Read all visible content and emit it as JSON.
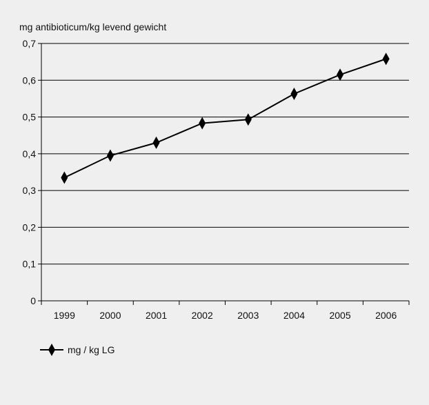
{
  "chart_data": {
    "type": "line",
    "ylabel": "mg antibioticum/kg levend gewicht",
    "categories": [
      "1999",
      "2000",
      "2001",
      "2002",
      "2003",
      "2004",
      "2005",
      "2006"
    ],
    "y_ticks": [
      "0",
      "0,1",
      "0,2",
      "0,3",
      "0,4",
      "0,5",
      "0,6",
      "0,7"
    ],
    "ylim": [
      0,
      0.7
    ],
    "grid": "horizontal",
    "legend_position": "bottom-left",
    "series": [
      {
        "name": "mg / kg LG",
        "values": [
          0.335,
          0.395,
          0.43,
          0.483,
          0.493,
          0.563,
          0.615,
          0.658
        ],
        "color": "#000000",
        "marker": "diamond"
      }
    ]
  }
}
